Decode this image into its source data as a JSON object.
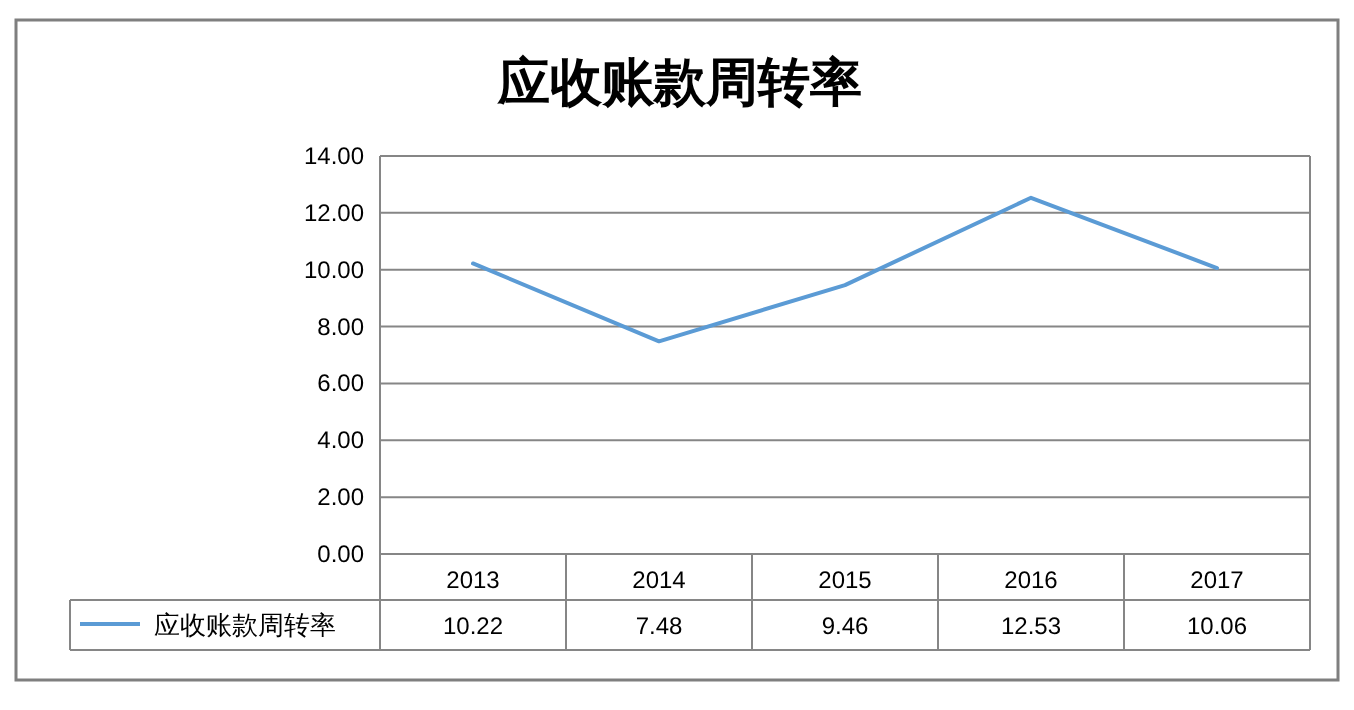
{
  "chart_data": {
    "type": "line",
    "title": "应收账款周转率",
    "categories": [
      "2013",
      "2014",
      "2015",
      "2016",
      "2017"
    ],
    "series": [
      {
        "name": "应收账款周转率",
        "color": "#5b9bd5",
        "values": [
          10.22,
          7.48,
          9.46,
          12.53,
          10.06
        ]
      }
    ],
    "ylim": [
      0,
      14
    ],
    "yticks": [
      {
        "value": 0,
        "label": "0.00"
      },
      {
        "value": 2,
        "label": "2.00"
      },
      {
        "value": 4,
        "label": "4.00"
      },
      {
        "value": 6,
        "label": "6.00"
      },
      {
        "value": 8,
        "label": "8.00"
      },
      {
        "value": 10,
        "label": "10.00"
      },
      {
        "value": 12,
        "label": "12.00"
      },
      {
        "value": 14,
        "label": "14.00"
      }
    ],
    "grid": "y",
    "legend": "bottom",
    "data_labels": true,
    "marker": "none",
    "line_style": "solid"
  }
}
